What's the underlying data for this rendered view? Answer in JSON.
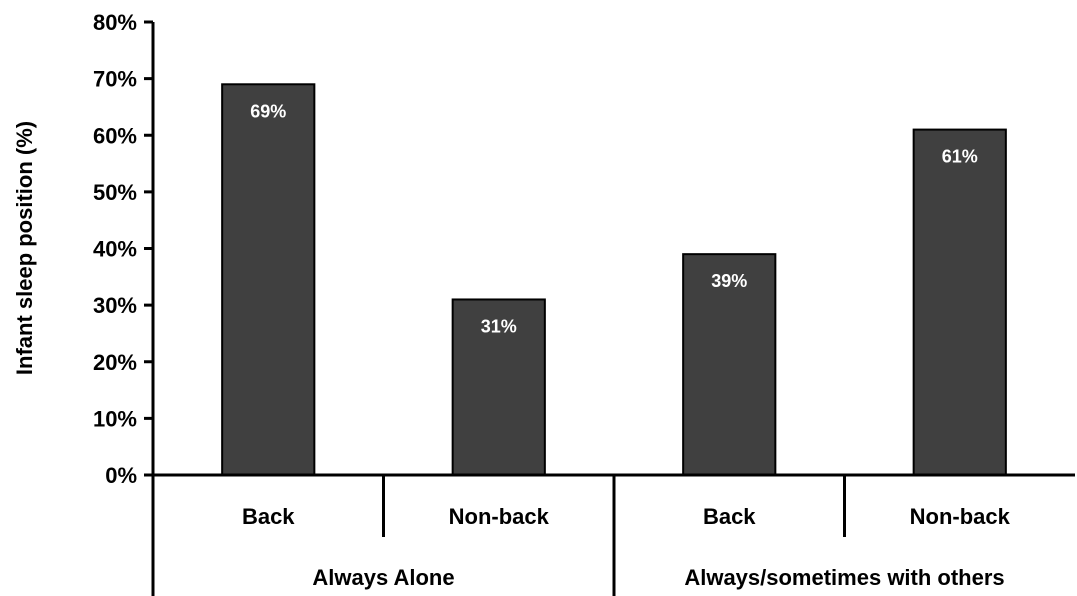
{
  "chart_data": {
    "type": "bar",
    "title": "",
    "xlabel": "",
    "ylabel": "Infant sleep position (%)",
    "ylim": [
      0,
      80
    ],
    "yticks": [
      "0%",
      "10%",
      "20%",
      "30%",
      "40%",
      "50%",
      "60%",
      "70%",
      "80%"
    ],
    "groups": [
      {
        "label": "Always Alone",
        "categories": [
          "Back",
          "Non-back"
        ],
        "values": [
          69,
          31
        ],
        "data_labels": [
          "69%",
          "31%"
        ]
      },
      {
        "label": "Always/sometimes with others",
        "categories": [
          "Back",
          "Non-back"
        ],
        "values": [
          39,
          61
        ],
        "data_labels": [
          "39%",
          "61%"
        ]
      }
    ],
    "bar_color": "#404040",
    "grid": false,
    "legend": "none"
  }
}
